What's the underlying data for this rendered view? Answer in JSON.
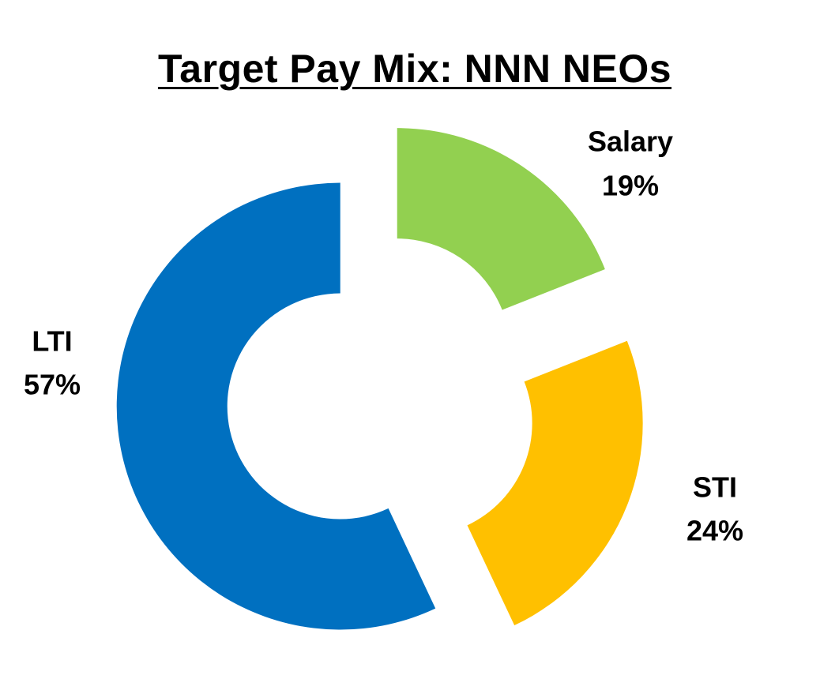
{
  "chart_data": {
    "type": "pie",
    "title": "Target Pay Mix: NNN NEOs",
    "categories": [
      "Salary",
      "STI",
      "LTI"
    ],
    "values": [
      19,
      24,
      57
    ],
    "labels": [
      "19%",
      "24%",
      "57%"
    ],
    "colors": [
      "#92D050",
      "#FFC000",
      "#0070C0"
    ],
    "donut": true,
    "exploded": true,
    "legend": "none"
  }
}
